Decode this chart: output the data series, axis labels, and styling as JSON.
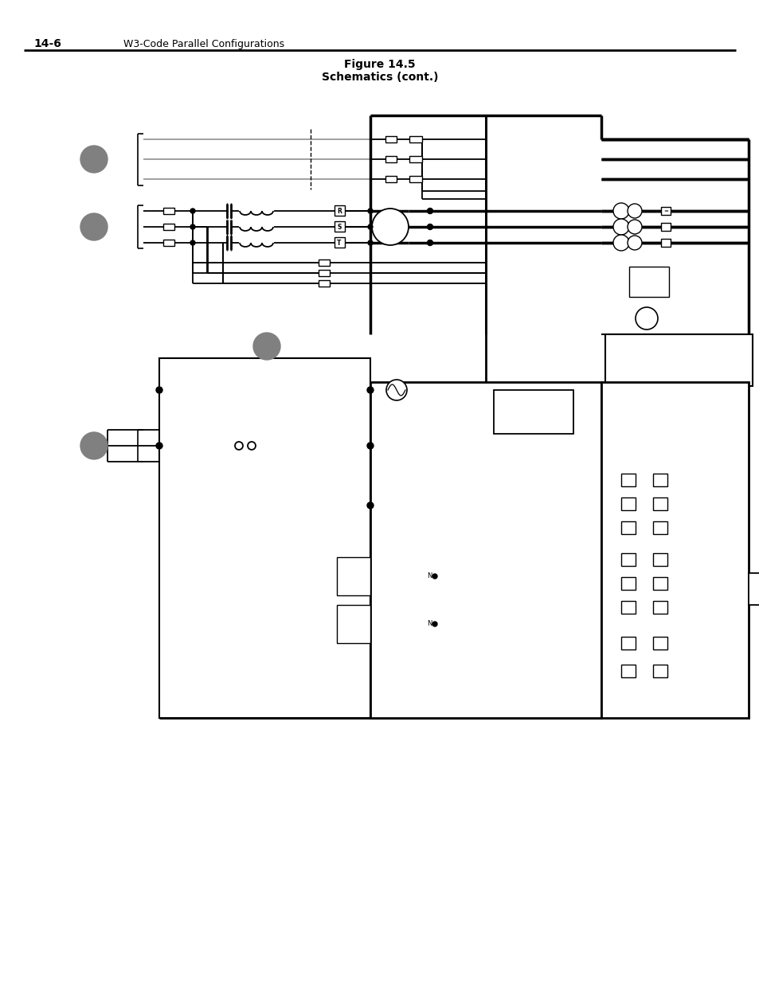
{
  "title_line1": "Figure 14.5",
  "title_line2": "Schematics (cont.)",
  "header_left": "14-6",
  "header_right": "W3-Code Parallel Configurations",
  "bg_color": "#ffffff",
  "line_color": "#000000",
  "gray_circle_color": "#808080",
  "light_gray": "#999999"
}
